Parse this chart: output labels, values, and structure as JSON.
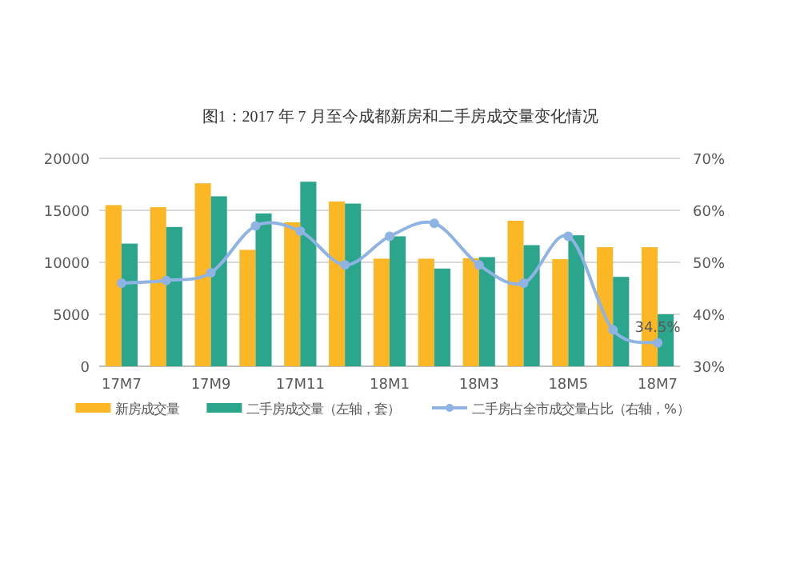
{
  "chart_data": {
    "type": "bar",
    "title": "图1：2017 年 7 月至今成都新房和二手房成交量变化情况",
    "categories": [
      "17M7",
      null,
      "17M9",
      null,
      "17M11",
      null,
      "18M1",
      null,
      "18M3",
      null,
      "18M5",
      null,
      "18M7"
    ],
    "series": [
      {
        "name": "新房成交量",
        "color": "#fbb726",
        "values": [
          15500,
          15300,
          17600,
          11200,
          13850,
          15850,
          10350,
          10350,
          10400,
          14000,
          10300,
          11450,
          11450
        ]
      },
      {
        "name": "二手房成交量（左轴，套）",
        "color": "#2ca58d",
        "values": [
          11800,
          13400,
          16350,
          14700,
          17750,
          15650,
          12500,
          9400,
          10500,
          11650,
          12600,
          8600,
          5000
        ]
      },
      {
        "name": "二手房占全市成交量占比（右轴，%）",
        "type": "line",
        "axis": "y2",
        "color": "#8fb4e3",
        "marker": "circle",
        "values": [
          46,
          46.5,
          48,
          57,
          56,
          49.5,
          55,
          57.5,
          49.5,
          46,
          55,
          37,
          34.5
        ],
        "value_labels": [
          null,
          null,
          null,
          null,
          null,
          null,
          null,
          null,
          null,
          null,
          null,
          null,
          "34.5%"
        ]
      }
    ],
    "ylim": [
      0,
      20000
    ],
    "yticks": [
      0,
      5000,
      10000,
      15000,
      20000
    ],
    "y2lim": [
      30,
      70
    ],
    "y2ticks": [
      {
        "value": 30,
        "label": "30%"
      },
      {
        "value": 40,
        "label": "40%"
      },
      {
        "value": 50,
        "label": "50%"
      },
      {
        "value": 60,
        "label": "60%"
      },
      {
        "value": 70,
        "label": "70%"
      }
    ],
    "grid": "y",
    "legend": "bottom"
  }
}
